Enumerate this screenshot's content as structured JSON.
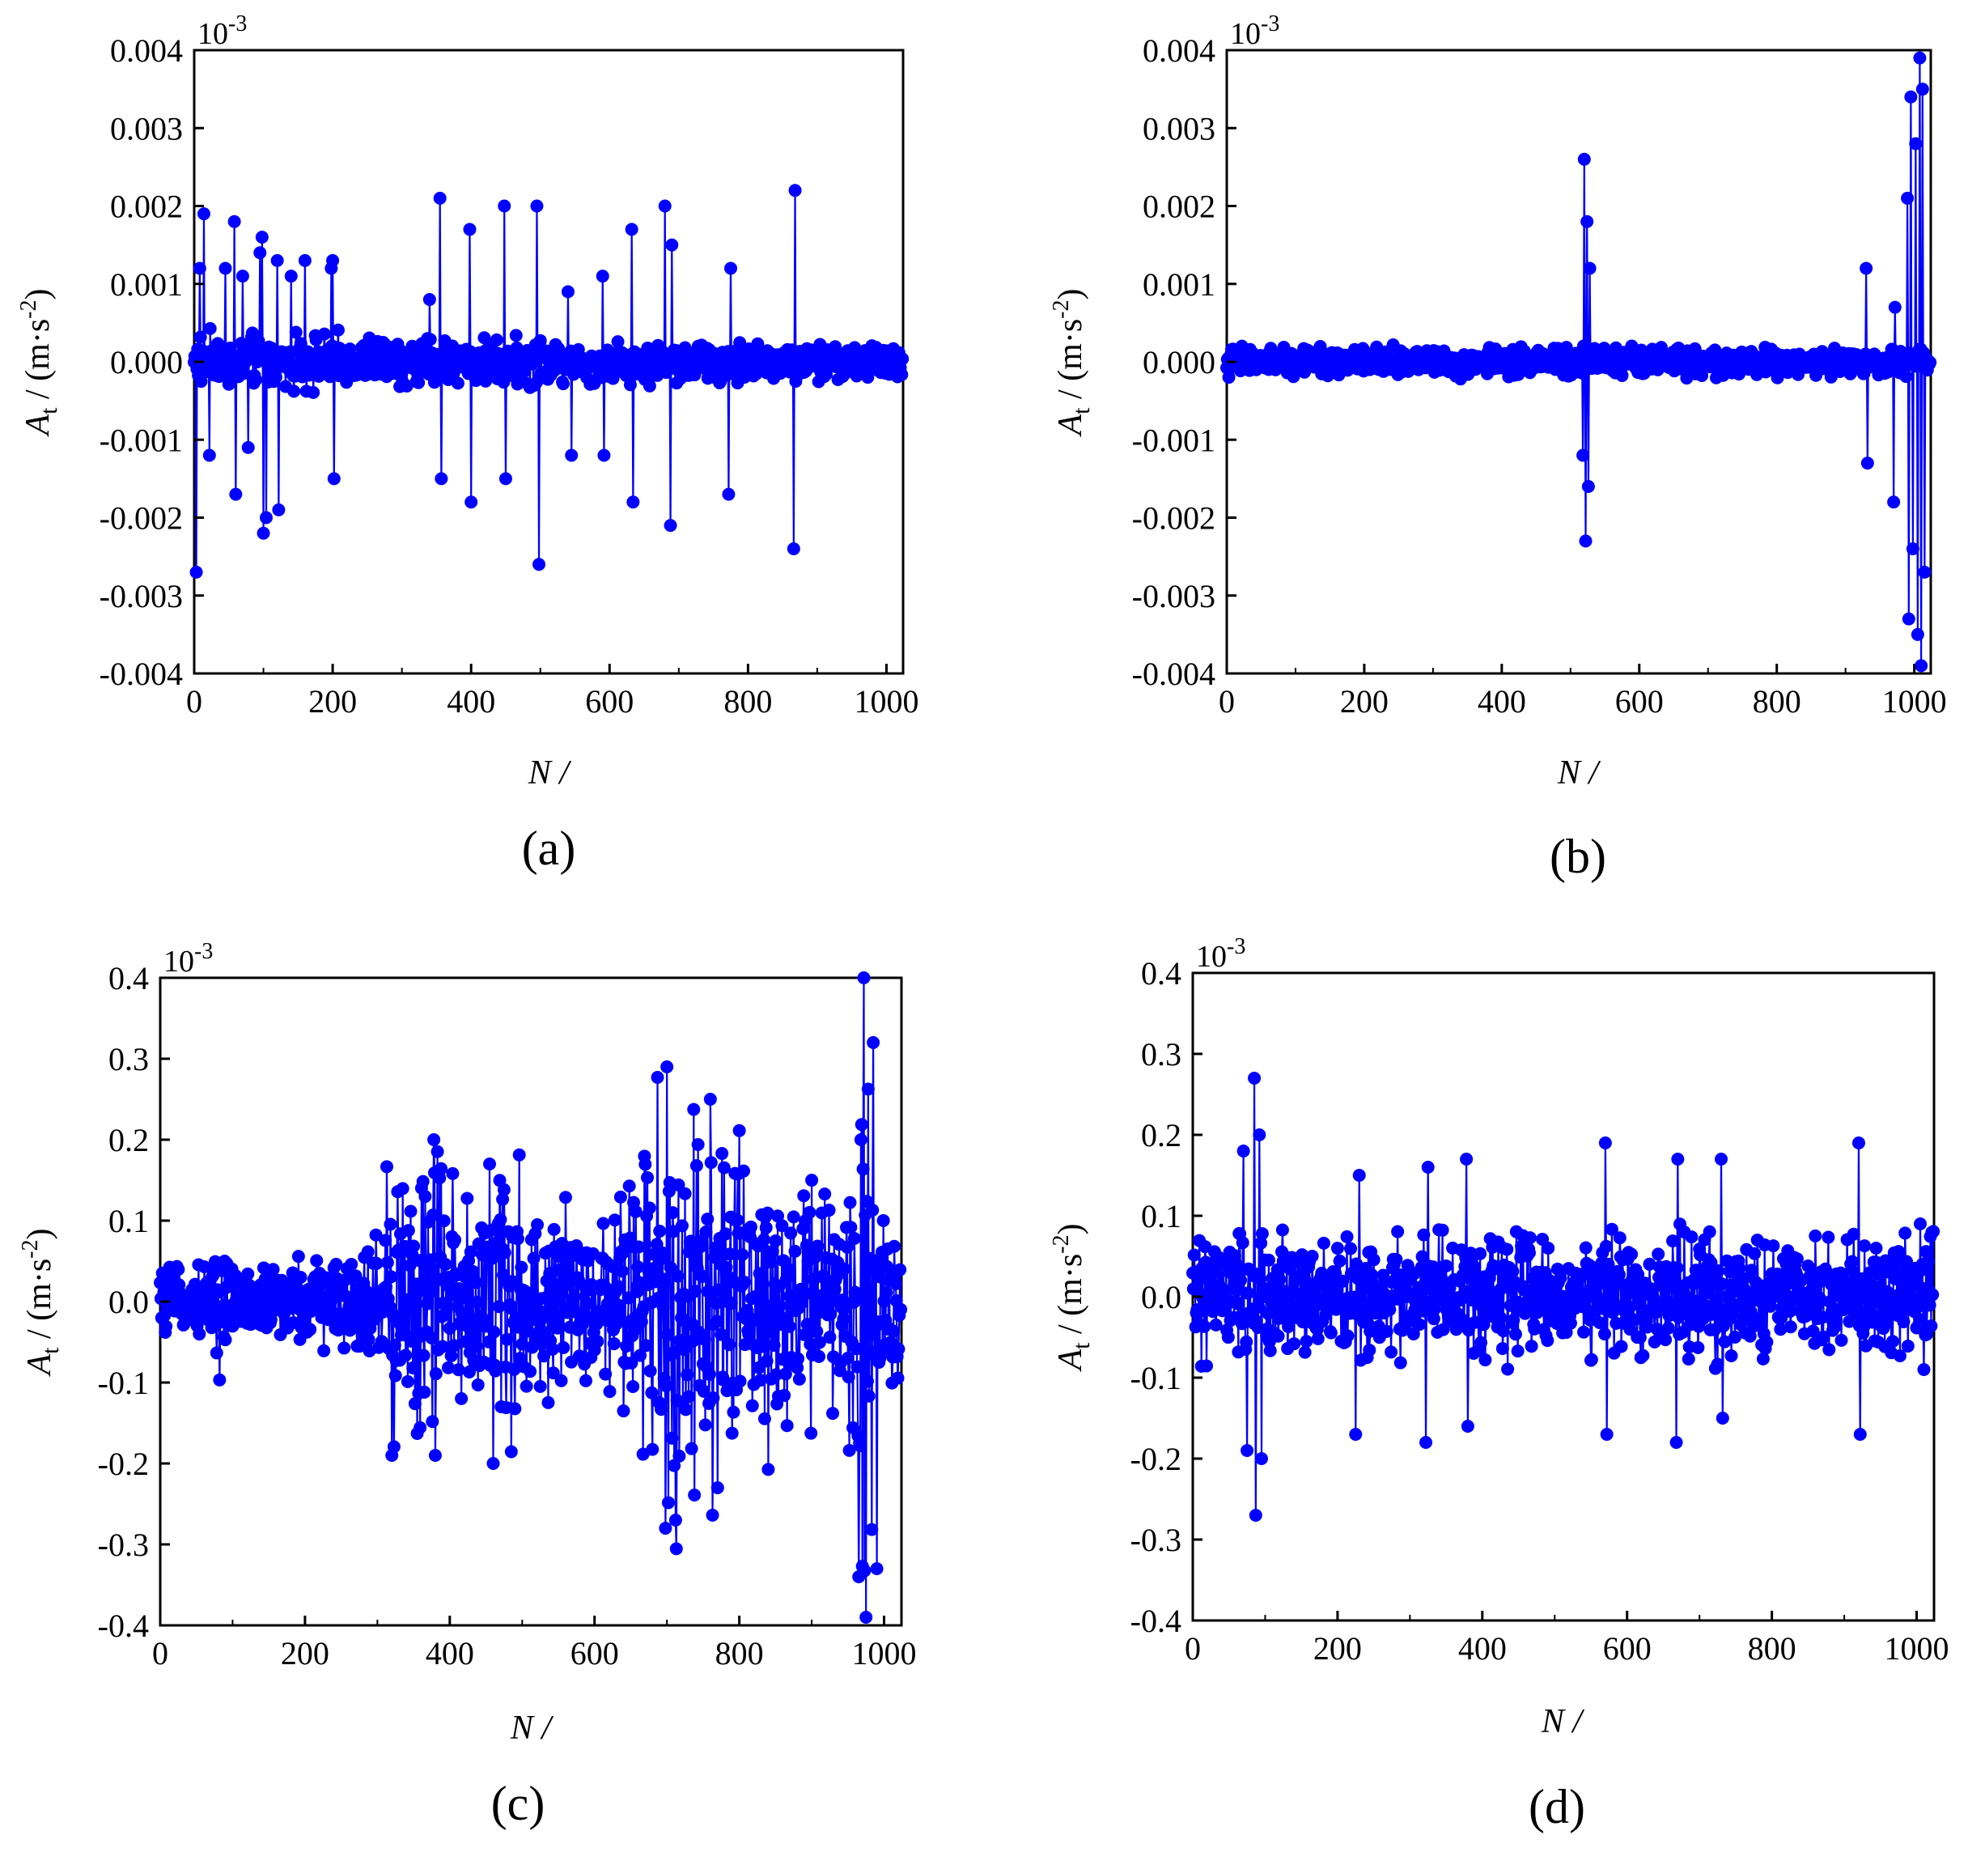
{
  "figure": {
    "panels": [
      "(a)",
      "(b)",
      "(c)",
      "(d)"
    ],
    "series_color": "#0000ff"
  },
  "chart_data": [
    {
      "type": "line",
      "label": "(a)",
      "xlabel": "N /",
      "ylabel_main": "A",
      "ylabel_sub": "t",
      "ylabel_units": " / (m·s",
      "ylabel_exp": "-2",
      "ylabel_close": ")",
      "multiplier": "10",
      "multiplier_exp": "-3",
      "xlim": [
        0,
        1024
      ],
      "ylim": [
        -0.004,
        0.004
      ],
      "xticks": [
        "0",
        "200",
        "400",
        "600",
        "800",
        "1000"
      ],
      "xtick_values": [
        0,
        200,
        400,
        600,
        800,
        1000
      ],
      "yticks": [
        "-0.004",
        "-0.003",
        "-0.002",
        "-0.001",
        "0.000",
        "0.001",
        "0.002",
        "0.003",
        "0.004"
      ],
      "ytick_values": [
        -0.004,
        -0.003,
        -0.002,
        -0.001,
        0.0,
        0.001,
        0.002,
        0.003,
        0.004
      ],
      "noise": {
        "amp": 0.00035,
        "decay_to": 0.6
      },
      "spikes": [
        [
          3,
          -0.0027
        ],
        [
          8,
          0.0012
        ],
        [
          14,
          0.0019
        ],
        [
          22,
          -0.0012
        ],
        [
          45,
          0.0012
        ],
        [
          58,
          0.0018
        ],
        [
          60,
          -0.0017
        ],
        [
          70,
          0.0011
        ],
        [
          78,
          -0.0011
        ],
        [
          95,
          0.0014
        ],
        [
          98,
          0.0016
        ],
        [
          100,
          -0.0022
        ],
        [
          104,
          -0.002
        ],
        [
          120,
          0.0013
        ],
        [
          122,
          -0.0019
        ],
        [
          140,
          0.0011
        ],
        [
          160,
          0.0013
        ],
        [
          198,
          0.0012
        ],
        [
          200,
          0.0013
        ],
        [
          202,
          -0.0015
        ],
        [
          340,
          0.0008
        ],
        [
          355,
          0.0021
        ],
        [
          357,
          -0.0015
        ],
        [
          398,
          0.0017
        ],
        [
          400,
          -0.0018
        ],
        [
          448,
          0.002
        ],
        [
          450,
          -0.0015
        ],
        [
          495,
          0.002
        ],
        [
          498,
          -0.0026
        ],
        [
          540,
          0.0009
        ],
        [
          545,
          -0.0012
        ],
        [
          590,
          0.0011
        ],
        [
          592,
          -0.0012
        ],
        [
          632,
          0.0017
        ],
        [
          634,
          -0.0018
        ],
        [
          680,
          0.002
        ],
        [
          690,
          0.0015
        ],
        [
          688,
          -0.0021
        ],
        [
          775,
          0.0012
        ],
        [
          772,
          -0.0017
        ],
        [
          868,
          0.0022
        ],
        [
          866,
          -0.0024
        ]
      ]
    },
    {
      "type": "line",
      "label": "(b)",
      "xlabel": "N /",
      "ylabel_main": "A",
      "ylabel_sub": "t",
      "ylabel_units": " / (m·s",
      "ylabel_exp": "-2",
      "ylabel_close": ")",
      "multiplier": "10",
      "multiplier_exp": "-3",
      "xlim": [
        0,
        1024
      ],
      "ylim": [
        -0.004,
        0.004
      ],
      "xticks": [
        "0",
        "200",
        "400",
        "600",
        "800",
        "1000"
      ],
      "xtick_values": [
        0,
        200,
        400,
        600,
        800,
        1000
      ],
      "yticks": [
        "-0.004",
        "-0.003",
        "-0.002",
        "-0.001",
        "0.000",
        "0.001",
        "0.002",
        "0.003",
        "0.004"
      ],
      "ytick_values": [
        -0.004,
        -0.003,
        -0.002,
        -0.001,
        0.0,
        0.001,
        0.002,
        0.003,
        0.004
      ],
      "noise": {
        "amp": 0.00018,
        "decay_to": 1.0
      },
      "spikes": [
        [
          520,
          0.0026
        ],
        [
          522,
          -0.0023
        ],
        [
          524,
          0.0018
        ],
        [
          526,
          -0.0016
        ],
        [
          528,
          0.0012
        ],
        [
          518,
          -0.0012
        ],
        [
          930,
          0.0012
        ],
        [
          932,
          -0.0013
        ],
        [
          970,
          -0.0018
        ],
        [
          972,
          0.0007
        ],
        [
          990,
          0.0021
        ],
        [
          992,
          -0.0033
        ],
        [
          995,
          0.0034
        ],
        [
          998,
          -0.0024
        ],
        [
          1002,
          0.0028
        ],
        [
          1005,
          -0.0035
        ],
        [
          1008,
          0.0039
        ],
        [
          1010,
          -0.0039
        ],
        [
          1012,
          0.0035
        ],
        [
          1015,
          -0.0027
        ]
      ]
    },
    {
      "type": "line",
      "label": "(c)",
      "xlabel": "N /",
      "ylabel_main": "A",
      "ylabel_sub": "t",
      "ylabel_units": " / (m·s",
      "ylabel_exp": "-2",
      "ylabel_close": ")",
      "multiplier": "10",
      "multiplier_exp": "-3",
      "xlim": [
        0,
        1024
      ],
      "ylim": [
        -0.4,
        0.4
      ],
      "xticks": [
        "0",
        "200",
        "400",
        "600",
        "800",
        "1000"
      ],
      "xtick_values": [
        0,
        200,
        400,
        600,
        800,
        1000
      ],
      "yticks": [
        "-0.4",
        "-0.3",
        "-0.2",
        "-0.1",
        "0.0",
        "0.1",
        "0.2",
        "0.3",
        "0.4"
      ],
      "ytick_values": [
        -0.4,
        -0.3,
        -0.2,
        -0.1,
        0.0,
        0.1,
        0.2,
        0.3,
        0.4
      ],
      "envelope": [
        [
          0,
          0.04
        ],
        [
          60,
          0.04
        ],
        [
          80,
          0.09
        ],
        [
          100,
          0.05
        ],
        [
          240,
          0.05
        ],
        [
          290,
          0.08
        ],
        [
          320,
          0.18
        ],
        [
          380,
          0.2
        ],
        [
          420,
          0.12
        ],
        [
          460,
          0.2
        ],
        [
          520,
          0.12
        ],
        [
          620,
          0.1
        ],
        [
          660,
          0.2
        ],
        [
          700,
          0.29
        ],
        [
          740,
          0.26
        ],
        [
          800,
          0.2
        ],
        [
          860,
          0.18
        ],
        [
          900,
          0.15
        ],
        [
          940,
          0.12
        ],
        [
          960,
          0.2
        ],
        [
          975,
          0.4
        ],
        [
          990,
          0.15
        ],
        [
          1024,
          0.08
        ]
      ],
      "spikes": [
        [
          320,
          -0.19
        ],
        [
          380,
          -0.19
        ],
        [
          378,
          0.2
        ],
        [
          460,
          -0.2
        ],
        [
          455,
          0.17
        ],
        [
          700,
          0.29
        ],
        [
          712,
          -0.27
        ],
        [
          698,
          -0.28
        ],
        [
          760,
          0.25
        ],
        [
          770,
          -0.23
        ],
        [
          972,
          0.4
        ],
        [
          975,
          -0.39
        ],
        [
          985,
          0.32
        ],
        [
          990,
          -0.33
        ],
        [
          965,
          -0.34
        ],
        [
          968,
          0.2
        ]
      ]
    },
    {
      "type": "line",
      "label": "(d)",
      "xlabel": "N /",
      "ylabel_main": "A",
      "ylabel_sub": "t",
      "ylabel_units": " / (m·s",
      "ylabel_exp": "-2",
      "ylabel_close": ")",
      "multiplier": "10",
      "multiplier_exp": "-3",
      "xlim": [
        0,
        1024
      ],
      "ylim": [
        -0.4,
        0.4
      ],
      "xticks": [
        "0",
        "200",
        "400",
        "600",
        "800",
        "1000"
      ],
      "xtick_values": [
        0,
        200,
        400,
        600,
        800,
        1000
      ],
      "yticks": [
        "-0.4",
        "-0.3",
        "-0.2",
        "-0.1",
        "0.0",
        "0.1",
        "0.2",
        "0.3",
        "0.4"
      ],
      "ytick_values": [
        -0.4,
        -0.3,
        -0.2,
        -0.1,
        0.0,
        0.1,
        0.2,
        0.3,
        0.4
      ],
      "noise": {
        "amp": 0.075,
        "decay_to": 1.0
      },
      "spikes": [
        [
          70,
          0.18
        ],
        [
          75,
          -0.19
        ],
        [
          85,
          0.27
        ],
        [
          87,
          -0.27
        ],
        [
          92,
          0.2
        ],
        [
          95,
          -0.2
        ],
        [
          225,
          -0.17
        ],
        [
          230,
          0.15
        ],
        [
          325,
          0.16
        ],
        [
          322,
          -0.18
        ],
        [
          378,
          0.17
        ],
        [
          380,
          -0.16
        ],
        [
          570,
          0.19
        ],
        [
          572,
          -0.17
        ],
        [
          670,
          0.17
        ],
        [
          668,
          -0.18
        ],
        [
          730,
          0.17
        ],
        [
          732,
          -0.15
        ],
        [
          920,
          0.19
        ],
        [
          922,
          -0.17
        ],
        [
          1005,
          0.09
        ],
        [
          1010,
          -0.09
        ]
      ]
    }
  ]
}
